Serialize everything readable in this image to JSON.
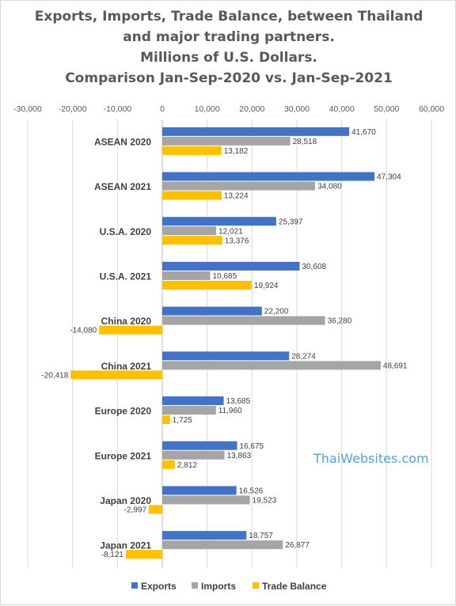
{
  "chart_data": {
    "type": "bar",
    "orientation": "horizontal",
    "title_lines": [
      "Exports,  Imports, Trade Balance, between Thailand",
      "and major trading partners.",
      "Millions  of U.S. Dollars.",
      "Comparison  Jan-Sep-2020 vs. Jan-Sep-2021"
    ],
    "categories": [
      "ASEAN 2020",
      "ASEAN 2021",
      "U.S.A. 2020",
      "U.S.A. 2021",
      "China 2020",
      "China 2021",
      "Europe 2020",
      "Europe 2021",
      "Japan 2020",
      "Japan 2021"
    ],
    "series": [
      {
        "name": "Exports",
        "color": "#4472c4",
        "values": [
          41670,
          47304,
          25397,
          30608,
          22200,
          28274,
          13685,
          16675,
          16526,
          18757
        ]
      },
      {
        "name": "Imports",
        "color": "#a5a5a5",
        "values": [
          28518,
          34080,
          12021,
          10685,
          36280,
          48691,
          11960,
          13863,
          19523,
          26877
        ]
      },
      {
        "name": "Trade Balance",
        "color": "#ffc000",
        "values": [
          13182,
          13224,
          13376,
          19924,
          -14080,
          -20418,
          1725,
          2812,
          -2997,
          -8121
        ]
      }
    ],
    "xlim": [
      -30000,
      60000
    ],
    "xticks": [
      -30000,
      -20000,
      -10000,
      0,
      10000,
      20000,
      30000,
      40000,
      50000,
      60000
    ],
    "xtick_labels": [
      "-30,000",
      "-20,000",
      "-10,000",
      "0",
      "10,000",
      "20,000",
      "30,000",
      "40,000",
      "50,000",
      "60,000"
    ],
    "x_axis_position": "top",
    "grid": "vertical",
    "legend": "bottom"
  },
  "watermark": "ThaiWebsites.com"
}
